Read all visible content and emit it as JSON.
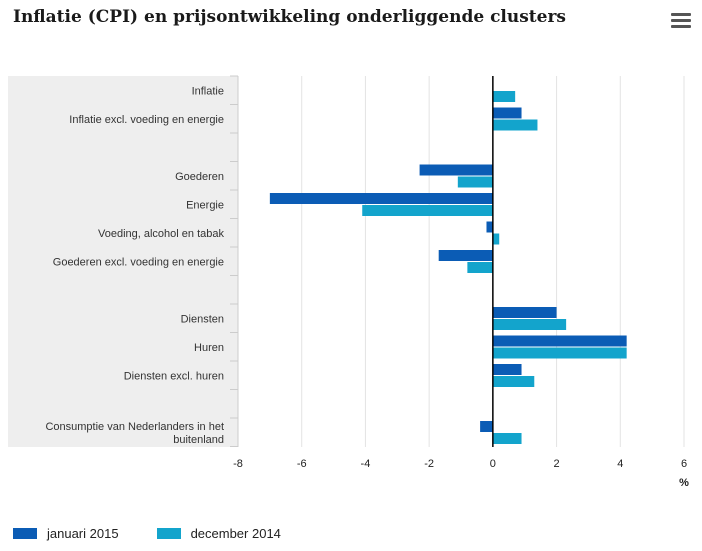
{
  "header": {
    "title": "Inflatie (CPI) en prijsontwikkeling onderliggende clusters",
    "menu_icon": "hamburger-menu-icon"
  },
  "colors": {
    "series_jan": "#0b5cb5",
    "series_dec": "#13a4cc",
    "label_area_bg": "#eeeeee",
    "grid": "#e3e3e3",
    "zero_line": "#000000"
  },
  "chart_data": {
    "type": "bar",
    "orientation": "horizontal",
    "categories": [
      "Inflatie",
      "Inflatie excl. voeding en energie",
      "",
      "Goederen",
      "Energie",
      "Voeding, alcohol en tabak",
      "Goederen excl. voeding en energie",
      "",
      "Diensten",
      "Huren",
      "Diensten excl. huren",
      "",
      "Consumptie van Nederlanders in het buitenland"
    ],
    "series": [
      {
        "name": "januari 2015",
        "values": [
          0.0,
          0.9,
          null,
          -2.3,
          -7.0,
          -0.2,
          -1.7,
          null,
          2.0,
          4.2,
          0.9,
          null,
          -0.4
        ]
      },
      {
        "name": "december 2014",
        "values": [
          0.7,
          1.4,
          null,
          -1.1,
          -4.1,
          0.2,
          -0.8,
          null,
          2.3,
          4.2,
          1.3,
          null,
          0.9
        ]
      }
    ],
    "xlim": [
      -8,
      6
    ],
    "xticks": [
      -8,
      -6,
      -4,
      -2,
      0,
      2,
      4,
      6
    ],
    "xlabel": "%",
    "grid": "vertical",
    "legend_position": "bottom-left"
  }
}
